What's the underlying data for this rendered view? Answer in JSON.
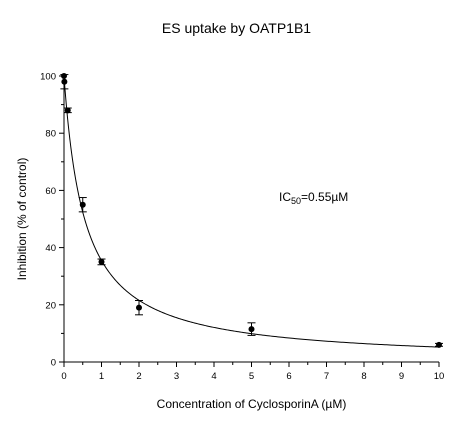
{
  "chart_data": {
    "type": "scatter",
    "title": "ES uptake by OATP1B1",
    "xlabel": "Concentration of CyclosporinA (µM)",
    "ylabel": "Inhibition  (% of control)",
    "xlim": [
      0,
      10
    ],
    "ylim": [
      0,
      100
    ],
    "xticks": [
      "0",
      "1",
      "2",
      "3",
      "4",
      "5",
      "6",
      "7",
      "8",
      "9",
      "10"
    ],
    "xtick_values": [
      0,
      1,
      2,
      3,
      4,
      5,
      6,
      7,
      8,
      9,
      10
    ],
    "yticks": [
      "0",
      "20",
      "40",
      "60",
      "80",
      "100"
    ],
    "ytick_values": [
      0,
      20,
      40,
      60,
      80,
      100
    ],
    "points": [
      {
        "x": 0,
        "y": 100,
        "err": 0
      },
      {
        "x": 0.01,
        "y": 98,
        "err": 2.5
      },
      {
        "x": 0.1,
        "y": 88,
        "err": 0.8
      },
      {
        "x": 0.5,
        "y": 55,
        "err": 2.5
      },
      {
        "x": 1,
        "y": 35,
        "err": 1
      },
      {
        "x": 2,
        "y": 19,
        "err": 2.5
      },
      {
        "x": 5,
        "y": 11.5,
        "err": 2.2
      },
      {
        "x": 10,
        "y": 6,
        "err": 0.5
      }
    ],
    "fit": {
      "model": "IC50",
      "ic50": 0.55,
      "plateau": 0
    },
    "annotation": {
      "prefix": "IC",
      "subscript": "50",
      "suffix": "=0.55µM"
    },
    "grid": false,
    "legend": "none"
  }
}
